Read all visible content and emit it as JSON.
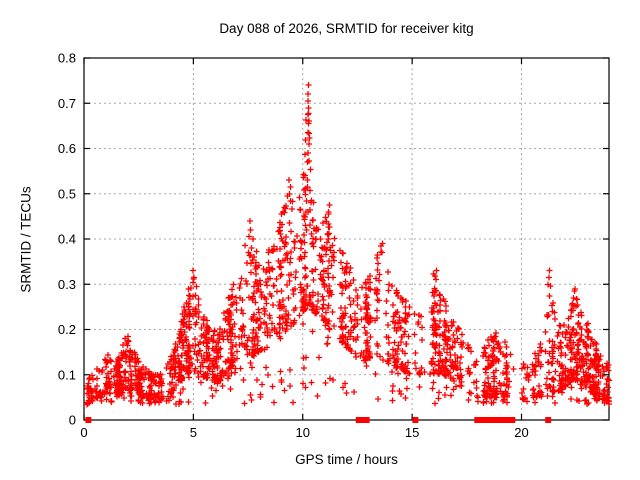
{
  "title": "Day 088 of 2026, SRMTID for receiver kitg",
  "chart_data": {
    "type": "scatter",
    "title": "Day 088 of 2026, SRMTID for receiver kitg",
    "xlabel": "GPS time / hours",
    "ylabel": "SRMTID / TECUs",
    "xlim": [
      0,
      24
    ],
    "ylim": [
      0,
      0.8
    ],
    "xticks": [
      0,
      5,
      10,
      15,
      20
    ],
    "xtick_labels": [
      "0",
      "5",
      "10",
      "15",
      "20"
    ],
    "yticks": [
      0,
      0.1,
      0.2,
      0.3,
      0.4,
      0.5,
      0.6,
      0.7,
      0.8
    ],
    "ytick_labels": [
      "0",
      "0.1",
      "0.2",
      "0.3",
      "0.4",
      "0.5",
      "0.6",
      "0.7",
      "0.8"
    ],
    "grid": true,
    "legend": "none",
    "marker": "plus",
    "marker_color": "#ff0000",
    "grid_color": "#a8a8a8",
    "axis_color": "#000000",
    "series": [
      {
        "name": "srmtid-points",
        "style": "envelope-scatter",
        "points_target": 2300,
        "envelope": [
          [
            0.0,
            0.03,
            0.08,
            55
          ],
          [
            0.3,
            0.04,
            0.1,
            70
          ],
          [
            0.7,
            0.05,
            0.12,
            80
          ],
          [
            1.0,
            0.06,
            0.15,
            90
          ],
          [
            1.5,
            0.06,
            0.13,
            85
          ],
          [
            1.9,
            0.07,
            0.19,
            85
          ],
          [
            2.3,
            0.06,
            0.15,
            80
          ],
          [
            2.8,
            0.05,
            0.12,
            72
          ],
          [
            3.3,
            0.04,
            0.1,
            62
          ],
          [
            3.8,
            0.05,
            0.12,
            65
          ],
          [
            4.2,
            0.07,
            0.17,
            75
          ],
          [
            4.6,
            0.1,
            0.26,
            85
          ],
          [
            5.0,
            0.11,
            0.33,
            95
          ],
          [
            5.3,
            0.1,
            0.27,
            88
          ],
          [
            5.7,
            0.09,
            0.21,
            82
          ],
          [
            6.1,
            0.08,
            0.2,
            80
          ],
          [
            6.5,
            0.1,
            0.26,
            85
          ],
          [
            6.9,
            0.13,
            0.31,
            88
          ],
          [
            7.2,
            0.14,
            0.35,
            90
          ],
          [
            7.6,
            0.14,
            0.44,
            90
          ],
          [
            8.0,
            0.15,
            0.35,
            90
          ],
          [
            8.5,
            0.17,
            0.38,
            95
          ],
          [
            9.0,
            0.18,
            0.45,
            100
          ],
          [
            9.4,
            0.2,
            0.53,
            105
          ],
          [
            9.7,
            0.22,
            0.48,
            105
          ],
          [
            10.0,
            0.24,
            0.55,
            110
          ],
          [
            10.25,
            0.25,
            0.74,
            115
          ],
          [
            10.5,
            0.24,
            0.46,
            110
          ],
          [
            10.8,
            0.22,
            0.42,
            105
          ],
          [
            11.2,
            0.2,
            0.48,
            105
          ],
          [
            11.6,
            0.18,
            0.4,
            100
          ],
          [
            12.0,
            0.16,
            0.35,
            100
          ],
          [
            12.4,
            0.14,
            0.32,
            95
          ],
          [
            12.8,
            0.13,
            0.3,
            95
          ],
          [
            13.2,
            0.14,
            0.34,
            95
          ],
          [
            13.6,
            0.14,
            0.39,
            95
          ],
          [
            14.0,
            0.12,
            0.31,
            90
          ],
          [
            14.5,
            0.11,
            0.28,
            85
          ],
          [
            15.0,
            0.1,
            0.26,
            85
          ],
          [
            15.5,
            0.1,
            0.23,
            85
          ],
          [
            16.0,
            0.1,
            0.33,
            90
          ],
          [
            16.4,
            0.1,
            0.28,
            85
          ],
          [
            16.8,
            0.09,
            0.23,
            80
          ],
          [
            17.2,
            0.07,
            0.2,
            75
          ],
          [
            17.6,
            0.06,
            0.18,
            70
          ],
          [
            18.0,
            0.05,
            0.15,
            65
          ],
          [
            18.5,
            0.05,
            0.18,
            65
          ],
          [
            19.0,
            0.05,
            0.2,
            65
          ],
          [
            19.4,
            0.05,
            0.16,
            60
          ],
          [
            19.8,
            0.04,
            0.13,
            58
          ],
          [
            20.3,
            0.05,
            0.14,
            60
          ],
          [
            20.7,
            0.05,
            0.16,
            65
          ],
          [
            21.0,
            0.06,
            0.2,
            70
          ],
          [
            21.25,
            0.07,
            0.33,
            75
          ],
          [
            21.5,
            0.06,
            0.24,
            75
          ],
          [
            22.0,
            0.07,
            0.21,
            80
          ],
          [
            22.4,
            0.09,
            0.29,
            85
          ],
          [
            22.8,
            0.08,
            0.25,
            85
          ],
          [
            23.2,
            0.06,
            0.19,
            75
          ],
          [
            23.6,
            0.05,
            0.15,
            65
          ],
          [
            24.0,
            0.04,
            0.12,
            55
          ]
        ],
        "notable_points": [
          [
            10.22,
            0.57
          ],
          [
            10.25,
            0.59
          ],
          [
            10.28,
            0.61
          ],
          [
            10.24,
            0.635
          ],
          [
            10.26,
            0.655
          ],
          [
            10.23,
            0.675
          ],
          [
            10.27,
            0.69
          ],
          [
            10.25,
            0.705
          ],
          [
            10.24,
            0.72
          ],
          [
            10.26,
            0.74
          ],
          [
            9.4,
            0.5
          ],
          [
            9.45,
            0.515
          ],
          [
            9.38,
            0.53
          ],
          [
            4.98,
            0.33
          ],
          [
            5.02,
            0.315
          ],
          [
            7.58,
            0.44
          ],
          [
            7.62,
            0.42
          ],
          [
            13.58,
            0.385
          ],
          [
            13.62,
            0.37
          ],
          [
            13.65,
            0.39
          ],
          [
            16.08,
            0.31
          ],
          [
            16.12,
            0.33
          ],
          [
            21.22,
            0.3
          ],
          [
            21.25,
            0.315
          ],
          [
            21.28,
            0.33
          ],
          [
            22.38,
            0.27
          ],
          [
            22.42,
            0.285
          ],
          [
            22.45,
            0.29
          ],
          [
            11.18,
            0.46
          ],
          [
            11.22,
            0.475
          ],
          [
            1.95,
            0.17
          ],
          [
            2.0,
            0.185
          ]
        ]
      },
      {
        "name": "flagged-epochs",
        "style": "filled-squares-on-axis",
        "y": 0,
        "x": [
          0.2,
          12.56,
          12.68,
          12.92,
          15.15,
          17.98,
          18.12,
          18.28,
          18.42,
          18.56,
          18.7,
          18.84,
          18.98,
          19.1,
          19.22,
          19.34,
          19.46,
          19.58,
          21.22
        ]
      }
    ]
  }
}
